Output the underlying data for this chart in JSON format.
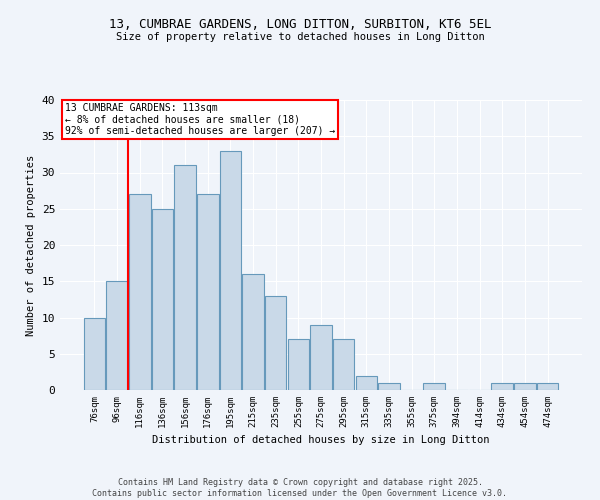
{
  "title1": "13, CUMBRAE GARDENS, LONG DITTON, SURBITON, KT6 5EL",
  "title2": "Size of property relative to detached houses in Long Ditton",
  "xlabel": "Distribution of detached houses by size in Long Ditton",
  "ylabel": "Number of detached properties",
  "categories": [
    "76sqm",
    "96sqm",
    "116sqm",
    "136sqm",
    "156sqm",
    "176sqm",
    "195sqm",
    "215sqm",
    "235sqm",
    "255sqm",
    "275sqm",
    "295sqm",
    "315sqm",
    "335sqm",
    "355sqm",
    "375sqm",
    "394sqm",
    "414sqm",
    "434sqm",
    "454sqm",
    "474sqm"
  ],
  "values": [
    10,
    15,
    27,
    25,
    31,
    27,
    33,
    16,
    13,
    7,
    9,
    7,
    2,
    1,
    0,
    1,
    0,
    0,
    1,
    1,
    1
  ],
  "bar_color": "#c9d9e8",
  "bar_edge_color": "#6699bb",
  "bg_color": "#f0f4fa",
  "grid_color": "#ffffff",
  "red_line_x": 1.5,
  "annotation_text": "13 CUMBRAE GARDENS: 113sqm\n← 8% of detached houses are smaller (18)\n92% of semi-detached houses are larger (207) →",
  "footer": "Contains HM Land Registry data © Crown copyright and database right 2025.\nContains public sector information licensed under the Open Government Licence v3.0.",
  "ylim": [
    0,
    40
  ],
  "yticks": [
    0,
    5,
    10,
    15,
    20,
    25,
    30,
    35,
    40
  ]
}
